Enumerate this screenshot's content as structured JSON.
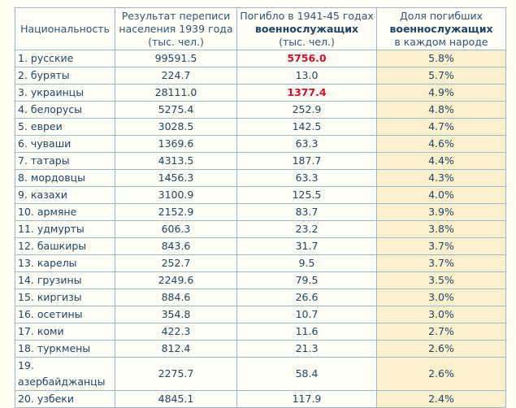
{
  "headers": {
    "nationality": "Национальность",
    "census_line1": "Результат переписи",
    "census_line2": "населения 1939 года",
    "census_line3": "(тыс. чел.)",
    "killed_line1": "Погибло в 1941-45 годах",
    "killed_line2": "военнослужащих",
    "killed_line3": "(тыс. чел.)",
    "share_line1": "Доля погибших",
    "share_line2": "военнослужащих",
    "share_line3": "в каждом народе"
  },
  "rows": [
    {
      "name": "1. русские",
      "census": "99591.5",
      "killed": "5756.0",
      "share": "5.8%",
      "highlight": true
    },
    {
      "name": "2. буряты",
      "census": "224.7",
      "killed": "13.0",
      "share": "5.7%"
    },
    {
      "name": "3. украинцы",
      "census": "28111.0",
      "killed": "1377.4",
      "share": "4.9%",
      "highlight": true
    },
    {
      "name": "4. белорусы",
      "census": "5275.4",
      "killed": "252.9",
      "share": "4.8%"
    },
    {
      "name": "5. евреи",
      "census": "3028.5",
      "killed": "142.5",
      "share": "4.7%"
    },
    {
      "name": "6. чуваши",
      "census": "1369.6",
      "killed": "63.3",
      "share": "4.6%"
    },
    {
      "name": "7. татары",
      "census": "4313.5",
      "killed": "187.7",
      "share": "4.4%"
    },
    {
      "name": "8. мордовцы",
      "census": "1456.3",
      "killed": "63.3",
      "share": "4.3%"
    },
    {
      "name": "9. казахи",
      "census": "3100.9",
      "killed": "125.5",
      "share": "4.0%"
    },
    {
      "name": "10. армяне",
      "census": "2152.9",
      "killed": "83.7",
      "share": "3.9%"
    },
    {
      "name": "11. удмурты",
      "census": "606.3",
      "killed": "23.2",
      "share": "3.8%"
    },
    {
      "name": "12. башкиры",
      "census": "843.6",
      "killed": "31.7",
      "share": "3.7%"
    },
    {
      "name": "13. карелы",
      "census": "252.7",
      "killed": "9.5",
      "share": "3.7%"
    },
    {
      "name": "14. грузины",
      "census": "2249.6",
      "killed": "79.5",
      "share": "3.5%"
    },
    {
      "name": "15. киргизы",
      "census": "884.6",
      "killed": "26.6",
      "share": "3.0%"
    },
    {
      "name": "16. осетины",
      "census": "354.8",
      "killed": "10.7",
      "share": "3.0%"
    },
    {
      "name": "17. коми",
      "census": "422.3",
      "killed": "11.6",
      "share": "2.7%"
    },
    {
      "name": "18. туркмены",
      "census": "812.4",
      "killed": "21.3",
      "share": "2.6%"
    },
    {
      "name": "19. азербайджанцы",
      "census": "2275.7",
      "killed": "58.4",
      "share": "2.6%"
    },
    {
      "name": "20. узбеки",
      "census": "4845.1",
      "killed": "117.9",
      "share": "2.4%"
    }
  ]
}
